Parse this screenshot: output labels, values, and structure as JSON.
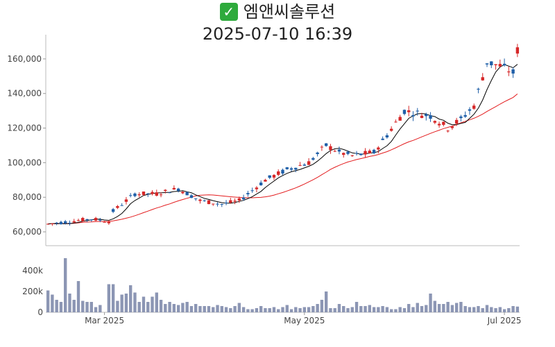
{
  "title": {
    "icon": "check-mark-icon",
    "company": "엠앤씨솔루션",
    "timestamp": "2025-07-10 16:39"
  },
  "colors": {
    "up": "#d62728",
    "down": "#1f5fa8",
    "ma_short": "#000000",
    "ma_long": "#e31a1c",
    "volume": "#8c96b4"
  },
  "chart_data": [
    {
      "type": "candlestick",
      "title": "엠앤씨솔루션",
      "ylim": [
        52000,
        174000
      ],
      "y_ticks": [
        60000,
        80000,
        100000,
        120000,
        140000,
        160000
      ],
      "y_tick_labels": [
        "60,000",
        "80,000",
        "100,000",
        "120,000",
        "140,000",
        "160,000"
      ],
      "x_ticks": [
        "Mar 2025",
        "May 2025",
        "Jul 2025"
      ],
      "x_tick_index": [
        13,
        59,
        105
      ],
      "n_days": 109,
      "ohlc": [],
      "ma_short_label": "",
      "ma_long_label": ""
    },
    {
      "type": "bar",
      "ylim": [
        0,
        560000
      ],
      "y_ticks": [
        0,
        200000,
        400000
      ],
      "y_tick_labels": [
        "0",
        "200k",
        "400k"
      ],
      "volume": [
        210000,
        170000,
        120000,
        100000,
        520000,
        180000,
        120000,
        300000,
        110000,
        100000,
        100000,
        50000,
        70000,
        0,
        270000,
        270000,
        110000,
        170000,
        180000,
        260000,
        190000,
        100000,
        150000,
        100000,
        150000,
        190000,
        120000,
        80000,
        100000,
        80000,
        70000,
        90000,
        100000,
        60000,
        80000,
        60000,
        60000,
        60000,
        50000,
        70000,
        60000,
        50000,
        40000,
        60000,
        90000,
        50000,
        30000,
        30000,
        40000,
        60000,
        40000,
        40000,
        50000,
        30000,
        50000,
        70000,
        30000,
        50000,
        40000,
        50000,
        50000,
        60000,
        80000,
        120000,
        200000,
        40000,
        40000,
        80000,
        60000,
        40000,
        50000,
        100000,
        60000,
        60000,
        70000,
        50000,
        50000,
        60000,
        50000,
        30000,
        30000,
        50000,
        40000,
        80000,
        50000,
        90000,
        60000,
        70000,
        180000,
        110000,
        80000,
        80000,
        100000,
        70000,
        90000,
        100000,
        60000,
        50000,
        50000,
        60000,
        40000,
        70000,
        50000,
        40000,
        50000,
        30000,
        40000,
        60000,
        55000
      ]
    }
  ]
}
